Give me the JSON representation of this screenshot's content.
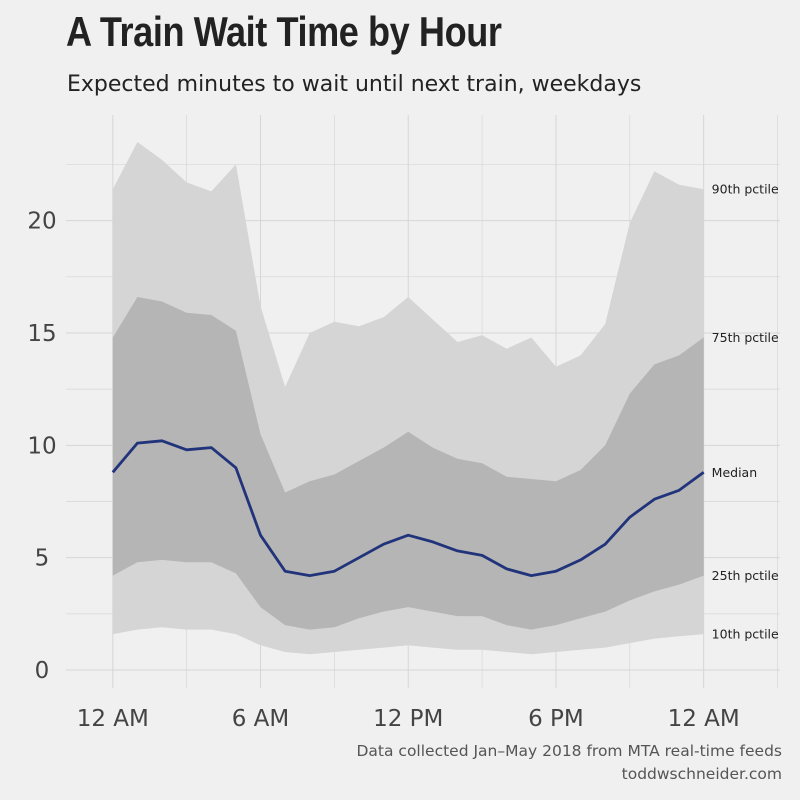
{
  "chart_data": {
    "type": "area",
    "title": "A Train Wait Time by Hour",
    "subtitle": "Expected minutes to wait until next train, weekdays",
    "caption": [
      "Data collected Jan–May 2018 from MTA real-time feeds",
      "toddwschneider.com"
    ],
    "xlabel": "",
    "ylabel": "",
    "x_unit": "hour of day (0 = 12 AM, 24 = next 12 AM)",
    "x": [
      0,
      1,
      2,
      3,
      4,
      5,
      6,
      7,
      8,
      9,
      10,
      11,
      12,
      13,
      14,
      15,
      16,
      17,
      18,
      19,
      20,
      21,
      22,
      23,
      24
    ],
    "xlim": [
      -1.9,
      27.1
    ],
    "ylim": [
      -0.8,
      24.7
    ],
    "x_ticks": [
      {
        "value": 0,
        "label": "12 AM"
      },
      {
        "value": 6,
        "label": "6 AM"
      },
      {
        "value": 12,
        "label": "12 PM"
      },
      {
        "value": 18,
        "label": "6 PM"
      },
      {
        "value": 24,
        "label": "12 AM"
      }
    ],
    "y_ticks": [
      0,
      5,
      10,
      15,
      20
    ],
    "grid": true,
    "legend": "direct labels at right end",
    "band_colors": {
      "outer": "#d5d5d5",
      "inner": "#b5b5b5",
      "median_line": "#21337a"
    },
    "series": [
      {
        "name": "90th pctile",
        "values": [
          21.4,
          23.5,
          22.7,
          21.7,
          21.3,
          22.5,
          16.2,
          12.6,
          15.0,
          15.5,
          15.3,
          15.7,
          16.6,
          15.6,
          14.6,
          14.9,
          14.3,
          14.8,
          13.5,
          14.0,
          15.4,
          19.9,
          22.2,
          21.6,
          21.4
        ]
      },
      {
        "name": "75th pctile",
        "values": [
          14.8,
          16.6,
          16.4,
          15.9,
          15.8,
          15.1,
          10.5,
          7.9,
          8.4,
          8.7,
          9.3,
          9.9,
          10.6,
          9.9,
          9.4,
          9.2,
          8.6,
          8.5,
          8.4,
          8.9,
          10.0,
          12.3,
          13.6,
          14.0,
          14.8
        ]
      },
      {
        "name": "Median",
        "values": [
          8.8,
          10.1,
          10.2,
          9.8,
          9.9,
          9.0,
          6.0,
          4.4,
          4.2,
          4.4,
          5.0,
          5.6,
          6.0,
          5.7,
          5.3,
          5.1,
          4.5,
          4.2,
          4.4,
          4.9,
          5.6,
          6.8,
          7.6,
          8.0,
          8.8
        ]
      },
      {
        "name": "25th pctile",
        "values": [
          4.2,
          4.8,
          4.9,
          4.8,
          4.8,
          4.3,
          2.8,
          2.0,
          1.8,
          1.9,
          2.3,
          2.6,
          2.8,
          2.6,
          2.4,
          2.4,
          2.0,
          1.8,
          2.0,
          2.3,
          2.6,
          3.1,
          3.5,
          3.8,
          4.2
        ]
      },
      {
        "name": "10th pctile",
        "values": [
          1.6,
          1.8,
          1.9,
          1.8,
          1.8,
          1.6,
          1.1,
          0.8,
          0.7,
          0.8,
          0.9,
          1.0,
          1.1,
          1.0,
          0.9,
          0.9,
          0.8,
          0.7,
          0.8,
          0.9,
          1.0,
          1.2,
          1.4,
          1.5,
          1.6
        ]
      }
    ]
  }
}
